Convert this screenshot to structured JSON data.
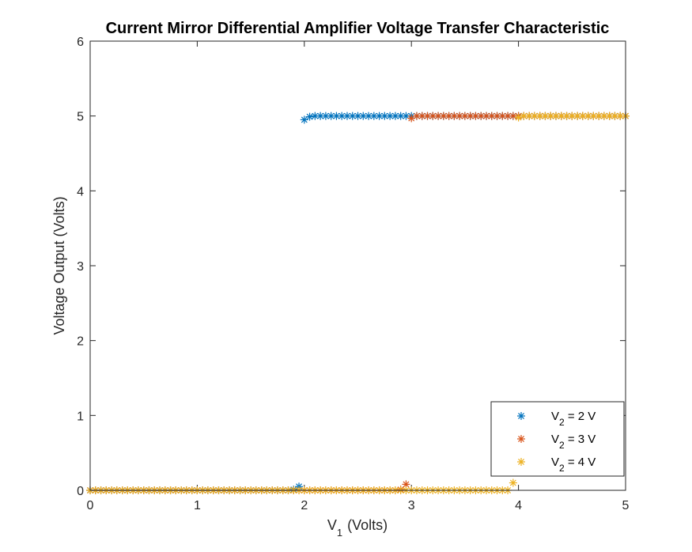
{
  "chart_data": {
    "type": "scatter",
    "title": "Current Mirror Differential Amplifier Voltage Transfer Characteristic",
    "xlabel": {
      "main": "V",
      "sub": "1",
      "rest": " (Volts)"
    },
    "ylabel": "Voltage Output (Volts)",
    "xlim": [
      0,
      5
    ],
    "ylim": [
      0,
      6
    ],
    "xticks": [
      0,
      1,
      2,
      3,
      4,
      5
    ],
    "yticks": [
      0,
      1,
      2,
      3,
      4,
      5,
      6
    ],
    "grid": false,
    "legend_position": "bottom-right",
    "marker": "asterisk",
    "x_start": 0,
    "x_step": 0.05,
    "series": [
      {
        "name": "V_2 = 2 V",
        "legend": {
          "pre": "V",
          "sub": "2",
          "post": " = 2 V"
        },
        "color": "#0072BD",
        "y": [
          0,
          0,
          0,
          0,
          0,
          0,
          0,
          0,
          0,
          0,
          0,
          0,
          0,
          0,
          0,
          0,
          0,
          0,
          0,
          0,
          0,
          0,
          0,
          0,
          0,
          0,
          0,
          0,
          0,
          0,
          0,
          0,
          0,
          0,
          0,
          0,
          0,
          0,
          0.01,
          0.05,
          4.95,
          4.99,
          5,
          5,
          5,
          5,
          5,
          5,
          5,
          5,
          5,
          5,
          5,
          5,
          5,
          5,
          5,
          5,
          5,
          5,
          5,
          5,
          5,
          5,
          5,
          5,
          5,
          5,
          5,
          5,
          5,
          5,
          5,
          5,
          5,
          5,
          5,
          5,
          5,
          5,
          5,
          5,
          5,
          5,
          5,
          5,
          5,
          5,
          5,
          5,
          5,
          5,
          5,
          5,
          5,
          5,
          5,
          5,
          5,
          5,
          5
        ]
      },
      {
        "name": "V_2 = 3 V",
        "legend": {
          "pre": "V",
          "sub": "2",
          "post": " = 3 V"
        },
        "color": "#D95319",
        "y": [
          0,
          0,
          0,
          0,
          0,
          0,
          0,
          0,
          0,
          0,
          0,
          0,
          0,
          0,
          0,
          0,
          0,
          0,
          0,
          0,
          0,
          0,
          0,
          0,
          0,
          0,
          0,
          0,
          0,
          0,
          0,
          0,
          0,
          0,
          0,
          0,
          0,
          0,
          0,
          0,
          0,
          0,
          0,
          0,
          0,
          0,
          0,
          0,
          0,
          0,
          0,
          0,
          0,
          0,
          0,
          0,
          0,
          0,
          0.01,
          0.08,
          4.97,
          5,
          5,
          5,
          5,
          5,
          5,
          5,
          5,
          5,
          5,
          5,
          5,
          5,
          5,
          5,
          5,
          5,
          5,
          5,
          5,
          5,
          5,
          5,
          5,
          5,
          5,
          5,
          5,
          5,
          5,
          5,
          5,
          5,
          5,
          5,
          5,
          5,
          5,
          5,
          5
        ]
      },
      {
        "name": "V_2 = 4 V",
        "legend": {
          "pre": "V",
          "sub": "2",
          "post": " = 4 V"
        },
        "color": "#EDB120",
        "y": [
          0,
          0,
          0,
          0,
          0,
          0,
          0,
          0,
          0,
          0,
          0,
          0,
          0,
          0,
          0,
          0,
          0,
          0,
          0,
          0,
          0,
          0,
          0,
          0,
          0,
          0,
          0,
          0,
          0,
          0,
          0,
          0,
          0,
          0,
          0,
          0,
          0,
          0,
          0,
          0,
          0,
          0,
          0,
          0,
          0,
          0,
          0,
          0,
          0,
          0,
          0,
          0,
          0,
          0,
          0,
          0,
          0,
          0,
          0,
          0,
          0,
          0,
          0,
          0,
          0,
          0,
          0,
          0,
          0,
          0,
          0,
          0,
          0,
          0,
          0,
          0,
          0,
          0,
          0,
          0.1,
          4.98,
          5,
          5,
          5,
          5,
          5,
          5,
          5,
          5,
          5,
          5,
          5,
          5,
          5,
          5,
          5,
          5,
          5,
          5,
          5,
          5
        ]
      }
    ]
  }
}
